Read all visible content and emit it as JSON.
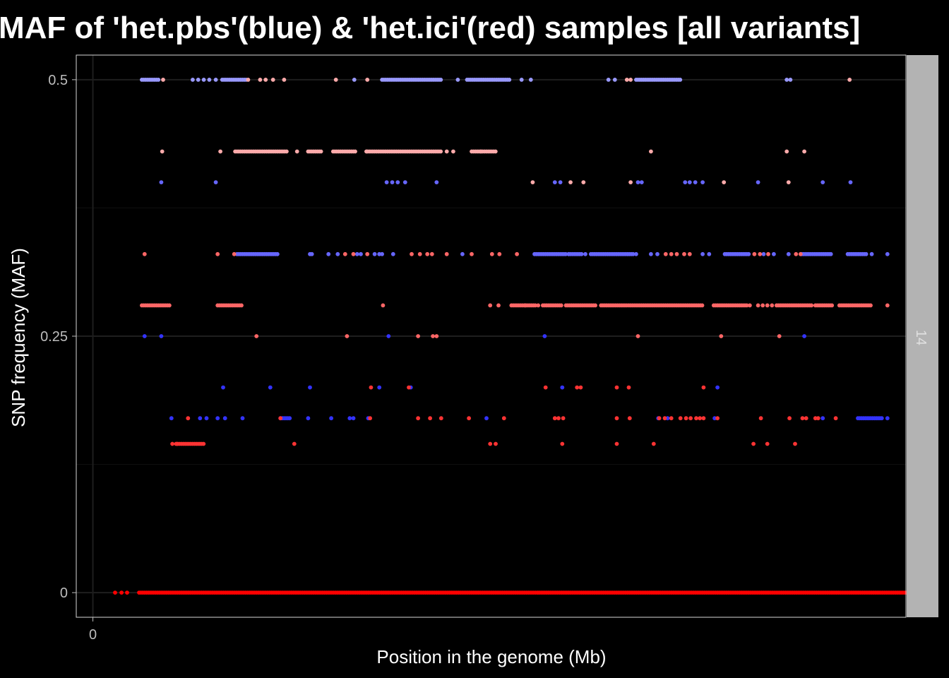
{
  "chart_data": {
    "type": "scatter",
    "title": "MAF of 'het.pbs'(blue) & 'het.ici'(red) samples [all variants]",
    "xlabel": "Position in the genome (Mb)",
    "ylabel": "SNP frequency (MAF)",
    "facet_label": "14",
    "x_ticks": [
      0
    ],
    "x_tick_labels": [
      "0"
    ],
    "y_ticks": [
      0,
      0.25,
      0.5
    ],
    "y_tick_labels": [
      "0",
      "0.25",
      "0.5"
    ],
    "xlim": [
      -0.018,
      0.88
    ],
    "ylim": [
      -0.024,
      0.524
    ],
    "grid": true,
    "legend": "none",
    "colors": {
      "background": "#000000",
      "panel_border": "#d9d9d9",
      "grid_major": "#1e1e1e",
      "grid_minor": "#111111",
      "strip_fill": "#b3b3b3"
    },
    "series": [
      {
        "color": "#ff0000",
        "runs": [
          [
            0.05,
            0.9,
            0.0
          ]
        ],
        "points": [
          [
            0.024,
            0.0
          ],
          [
            0.031,
            0.0
          ],
          [
            0.037,
            0.0
          ]
        ]
      },
      {
        "color": "#9999ff",
        "runs": [
          [
            0.053,
            0.071,
            0.5
          ],
          [
            0.14,
            0.166,
            0.5
          ],
          [
            0.313,
            0.377,
            0.5
          ],
          [
            0.405,
            0.452,
            0.5
          ],
          [
            0.588,
            0.637,
            0.5
          ]
        ],
        "points": [
          [
            0.108,
            0.5
          ],
          [
            0.114,
            0.5
          ],
          [
            0.12,
            0.5
          ],
          [
            0.126,
            0.5
          ],
          [
            0.133,
            0.5
          ],
          [
            0.283,
            0.5
          ],
          [
            0.395,
            0.5
          ],
          [
            0.464,
            0.5
          ],
          [
            0.474,
            0.5
          ],
          [
            0.558,
            0.5
          ],
          [
            0.565,
            0.5
          ],
          [
            0.751,
            0.5
          ],
          [
            0.755,
            0.5
          ]
        ]
      },
      {
        "color": "#ffaaaa",
        "runs": [
          [
            0.154,
            0.211,
            0.43
          ],
          [
            0.233,
            0.247,
            0.43
          ],
          [
            0.26,
            0.284,
            0.43
          ],
          [
            0.297,
            0.377,
            0.43
          ],
          [
            0.41,
            0.437,
            0.43
          ]
        ],
        "points": [
          [
            0.076,
            0.5
          ],
          [
            0.168,
            0.5
          ],
          [
            0.181,
            0.5
          ],
          [
            0.187,
            0.5
          ],
          [
            0.195,
            0.5
          ],
          [
            0.207,
            0.5
          ],
          [
            0.263,
            0.5
          ],
          [
            0.297,
            0.5
          ],
          [
            0.578,
            0.5
          ],
          [
            0.582,
            0.5
          ],
          [
            0.819,
            0.5
          ],
          [
            0.075,
            0.43
          ],
          [
            0.138,
            0.43
          ],
          [
            0.221,
            0.43
          ],
          [
            0.296,
            0.43
          ],
          [
            0.383,
            0.43
          ],
          [
            0.39,
            0.43
          ],
          [
            0.42,
            0.43
          ],
          [
            0.604,
            0.43
          ],
          [
            0.751,
            0.43
          ],
          [
            0.77,
            0.43
          ],
          [
            0.476,
            0.4
          ],
          [
            0.517,
            0.4
          ],
          [
            0.531,
            0.4
          ],
          [
            0.582,
            0.4
          ],
          [
            0.683,
            0.4
          ],
          [
            0.753,
            0.4
          ]
        ]
      },
      {
        "color": "#6666ff",
        "runs": [
          [
            0.156,
            0.201,
            0.33
          ],
          [
            0.478,
            0.512,
            0.33
          ],
          [
            0.515,
            0.529,
            0.33
          ],
          [
            0.539,
            0.586,
            0.33
          ],
          [
            0.684,
            0.71,
            0.33
          ],
          [
            0.767,
            0.8,
            0.33
          ],
          [
            0.817,
            0.838,
            0.33
          ]
        ],
        "points": [
          [
            0.074,
            0.4
          ],
          [
            0.133,
            0.4
          ],
          [
            0.318,
            0.4
          ],
          [
            0.324,
            0.4
          ],
          [
            0.33,
            0.4
          ],
          [
            0.338,
            0.4
          ],
          [
            0.372,
            0.4
          ],
          [
            0.5,
            0.4
          ],
          [
            0.506,
            0.4
          ],
          [
            0.59,
            0.4
          ],
          [
            0.594,
            0.4
          ],
          [
            0.641,
            0.4
          ],
          [
            0.646,
            0.4
          ],
          [
            0.652,
            0.4
          ],
          [
            0.66,
            0.4
          ],
          [
            0.72,
            0.4
          ],
          [
            0.79,
            0.4
          ],
          [
            0.82,
            0.4
          ],
          [
            0.235,
            0.33
          ],
          [
            0.237,
            0.33
          ],
          [
            0.255,
            0.33
          ],
          [
            0.265,
            0.33
          ],
          [
            0.286,
            0.33
          ],
          [
            0.29,
            0.33
          ],
          [
            0.305,
            0.33
          ],
          [
            0.31,
            0.33
          ],
          [
            0.313,
            0.33
          ],
          [
            0.325,
            0.33
          ],
          [
            0.4,
            0.33
          ],
          [
            0.515,
            0.33
          ],
          [
            0.533,
            0.33
          ],
          [
            0.588,
            0.33
          ],
          [
            0.604,
            0.33
          ],
          [
            0.611,
            0.33
          ],
          [
            0.66,
            0.33
          ],
          [
            0.667,
            0.33
          ],
          [
            0.726,
            0.33
          ],
          [
            0.737,
            0.33
          ],
          [
            0.753,
            0.33
          ],
          [
            0.843,
            0.33
          ],
          [
            0.86,
            0.33
          ]
        ]
      },
      {
        "color": "#ff6666",
        "runs": [
          [
            0.053,
            0.083,
            0.28
          ],
          [
            0.135,
            0.161,
            0.28
          ],
          [
            0.455,
            0.48,
            0.28
          ],
          [
            0.487,
            0.507,
            0.28
          ],
          [
            0.512,
            0.545,
            0.28
          ],
          [
            0.55,
            0.578,
            0.28
          ],
          [
            0.58,
            0.66,
            0.28
          ],
          [
            0.672,
            0.708,
            0.28
          ],
          [
            0.742,
            0.778,
            0.28
          ],
          [
            0.782,
            0.8,
            0.28
          ],
          [
            0.808,
            0.842,
            0.28
          ]
        ],
        "points": [
          [
            0.056,
            0.33
          ],
          [
            0.135,
            0.33
          ],
          [
            0.153,
            0.33
          ],
          [
            0.273,
            0.33
          ],
          [
            0.282,
            0.33
          ],
          [
            0.297,
            0.33
          ],
          [
            0.345,
            0.33
          ],
          [
            0.354,
            0.33
          ],
          [
            0.362,
            0.33
          ],
          [
            0.367,
            0.33
          ],
          [
            0.383,
            0.33
          ],
          [
            0.41,
            0.33
          ],
          [
            0.432,
            0.33
          ],
          [
            0.44,
            0.33
          ],
          [
            0.459,
            0.33
          ],
          [
            0.62,
            0.33
          ],
          [
            0.626,
            0.33
          ],
          [
            0.632,
            0.33
          ],
          [
            0.64,
            0.33
          ],
          [
            0.646,
            0.33
          ],
          [
            0.716,
            0.33
          ],
          [
            0.722,
            0.33
          ],
          [
            0.731,
            0.33
          ],
          [
            0.761,
            0.33
          ],
          [
            0.766,
            0.33
          ],
          [
            0.314,
            0.28
          ],
          [
            0.43,
            0.28
          ],
          [
            0.439,
            0.28
          ],
          [
            0.453,
            0.28
          ],
          [
            0.468,
            0.28
          ],
          [
            0.482,
            0.28
          ],
          [
            0.711,
            0.28
          ],
          [
            0.72,
            0.28
          ],
          [
            0.725,
            0.28
          ],
          [
            0.73,
            0.28
          ],
          [
            0.735,
            0.28
          ],
          [
            0.74,
            0.28
          ],
          [
            0.86,
            0.28
          ],
          [
            0.177,
            0.25
          ],
          [
            0.275,
            0.25
          ],
          [
            0.352,
            0.25
          ],
          [
            0.368,
            0.25
          ],
          [
            0.372,
            0.25
          ],
          [
            0.59,
            0.25
          ],
          [
            0.68,
            0.25
          ],
          [
            0.743,
            0.25
          ]
        ]
      },
      {
        "color": "#3333ff",
        "runs": [
          [
            0.203,
            0.214,
            0.17
          ],
          [
            0.828,
            0.855,
            0.17
          ]
        ],
        "points": [
          [
            0.056,
            0.25
          ],
          [
            0.074,
            0.25
          ],
          [
            0.32,
            0.25
          ],
          [
            0.489,
            0.25
          ],
          [
            0.77,
            0.25
          ],
          [
            0.141,
            0.2
          ],
          [
            0.192,
            0.2
          ],
          [
            0.235,
            0.2
          ],
          [
            0.31,
            0.2
          ],
          [
            0.344,
            0.2
          ],
          [
            0.508,
            0.2
          ],
          [
            0.676,
            0.2
          ],
          [
            0.085,
            0.17
          ],
          [
            0.135,
            0.17
          ],
          [
            0.116,
            0.17
          ],
          [
            0.123,
            0.17
          ],
          [
            0.143,
            0.17
          ],
          [
            0.162,
            0.17
          ],
          [
            0.233,
            0.17
          ],
          [
            0.258,
            0.17
          ],
          [
            0.278,
            0.17
          ],
          [
            0.282,
            0.17
          ],
          [
            0.298,
            0.17
          ],
          [
            0.426,
            0.17
          ],
          [
            0.612,
            0.17
          ],
          [
            0.622,
            0.17
          ],
          [
            0.673,
            0.17
          ],
          [
            0.79,
            0.17
          ],
          [
            0.86,
            0.17
          ]
        ]
      },
      {
        "color": "#ff3333",
        "runs": [
          [
            0.09,
            0.12,
            0.145
          ]
        ],
        "points": [
          [
            0.301,
            0.2
          ],
          [
            0.342,
            0.2
          ],
          [
            0.49,
            0.2
          ],
          [
            0.524,
            0.2
          ],
          [
            0.528,
            0.2
          ],
          [
            0.567,
            0.2
          ],
          [
            0.58,
            0.2
          ],
          [
            0.661,
            0.2
          ],
          [
            0.103,
            0.17
          ],
          [
            0.203,
            0.17
          ],
          [
            0.3,
            0.17
          ],
          [
            0.352,
            0.17
          ],
          [
            0.365,
            0.17
          ],
          [
            0.377,
            0.17
          ],
          [
            0.407,
            0.17
          ],
          [
            0.445,
            0.17
          ],
          [
            0.5,
            0.17
          ],
          [
            0.504,
            0.17
          ],
          [
            0.509,
            0.17
          ],
          [
            0.567,
            0.17
          ],
          [
            0.581,
            0.17
          ],
          [
            0.613,
            0.17
          ],
          [
            0.619,
            0.17
          ],
          [
            0.626,
            0.17
          ],
          [
            0.636,
            0.17
          ],
          [
            0.642,
            0.17
          ],
          [
            0.647,
            0.17
          ],
          [
            0.653,
            0.17
          ],
          [
            0.657,
            0.17
          ],
          [
            0.661,
            0.17
          ],
          [
            0.676,
            0.17
          ],
          [
            0.723,
            0.17
          ],
          [
            0.754,
            0.17
          ],
          [
            0.768,
            0.17
          ],
          [
            0.772,
            0.17
          ],
          [
            0.782,
            0.17
          ],
          [
            0.785,
            0.17
          ],
          [
            0.804,
            0.17
          ],
          [
            0.086,
            0.145
          ],
          [
            0.091,
            0.145
          ],
          [
            0.218,
            0.145
          ],
          [
            0.43,
            0.145
          ],
          [
            0.436,
            0.145
          ],
          [
            0.508,
            0.145
          ],
          [
            0.567,
            0.145
          ],
          [
            0.607,
            0.145
          ],
          [
            0.715,
            0.145
          ],
          [
            0.73,
            0.145
          ],
          [
            0.76,
            0.145
          ]
        ]
      }
    ]
  }
}
